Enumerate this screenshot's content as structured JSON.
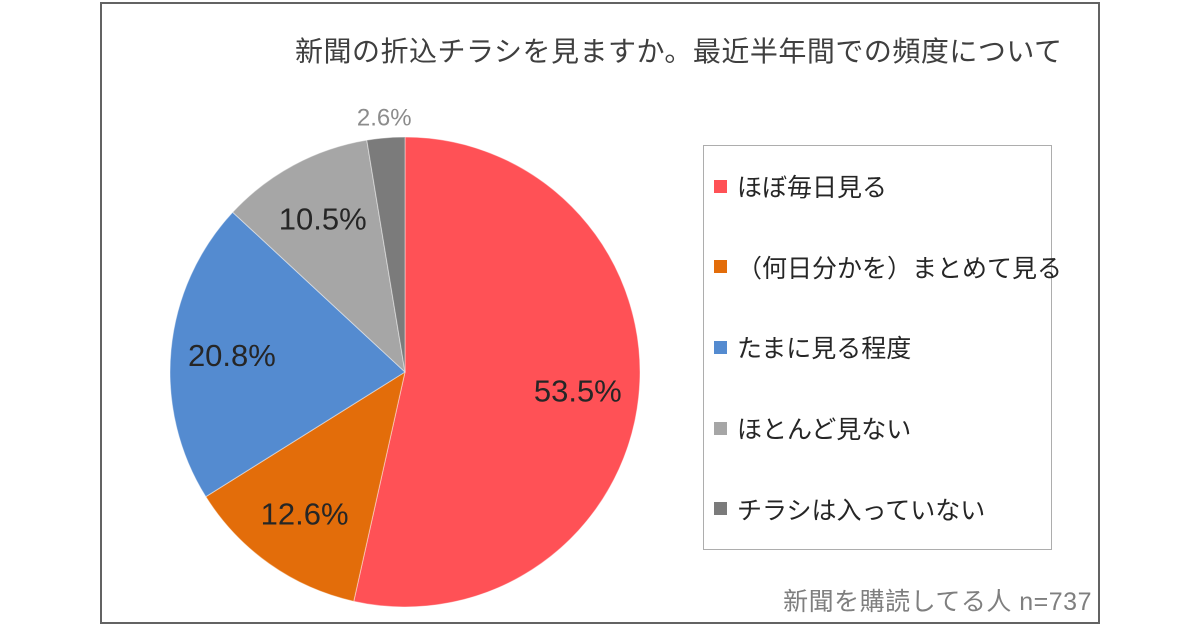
{
  "chart_data": {
    "type": "pie",
    "title": "新聞の折込チラシを見ますか。最近半年間での頻度について",
    "footnote": "新聞を購読してる人 n=737",
    "legend_position": "right",
    "start_angle_deg": 0,
    "direction": "clockwise",
    "slices": [
      {
        "label": "ほぼ毎日見る",
        "value": 53.5,
        "display": "53.5%",
        "color": "#ff5156"
      },
      {
        "label": "（何日分かを）まとめて見る",
        "value": 12.6,
        "display": "12.6%",
        "color": "#e36d0a"
      },
      {
        "label": "たまに見る程度",
        "value": 20.8,
        "display": "20.8%",
        "color": "#548bd0"
      },
      {
        "label": "ほとんど見ない",
        "value": 10.5,
        "display": "10.5%",
        "color": "#a6a6a6"
      },
      {
        "label": "チラシは入っていない",
        "value": 2.6,
        "display": "2.6%",
        "color": "#7b7b7b"
      }
    ],
    "label_colors": {
      "inside": "#262626",
      "outside": "#8c8c8c"
    }
  }
}
